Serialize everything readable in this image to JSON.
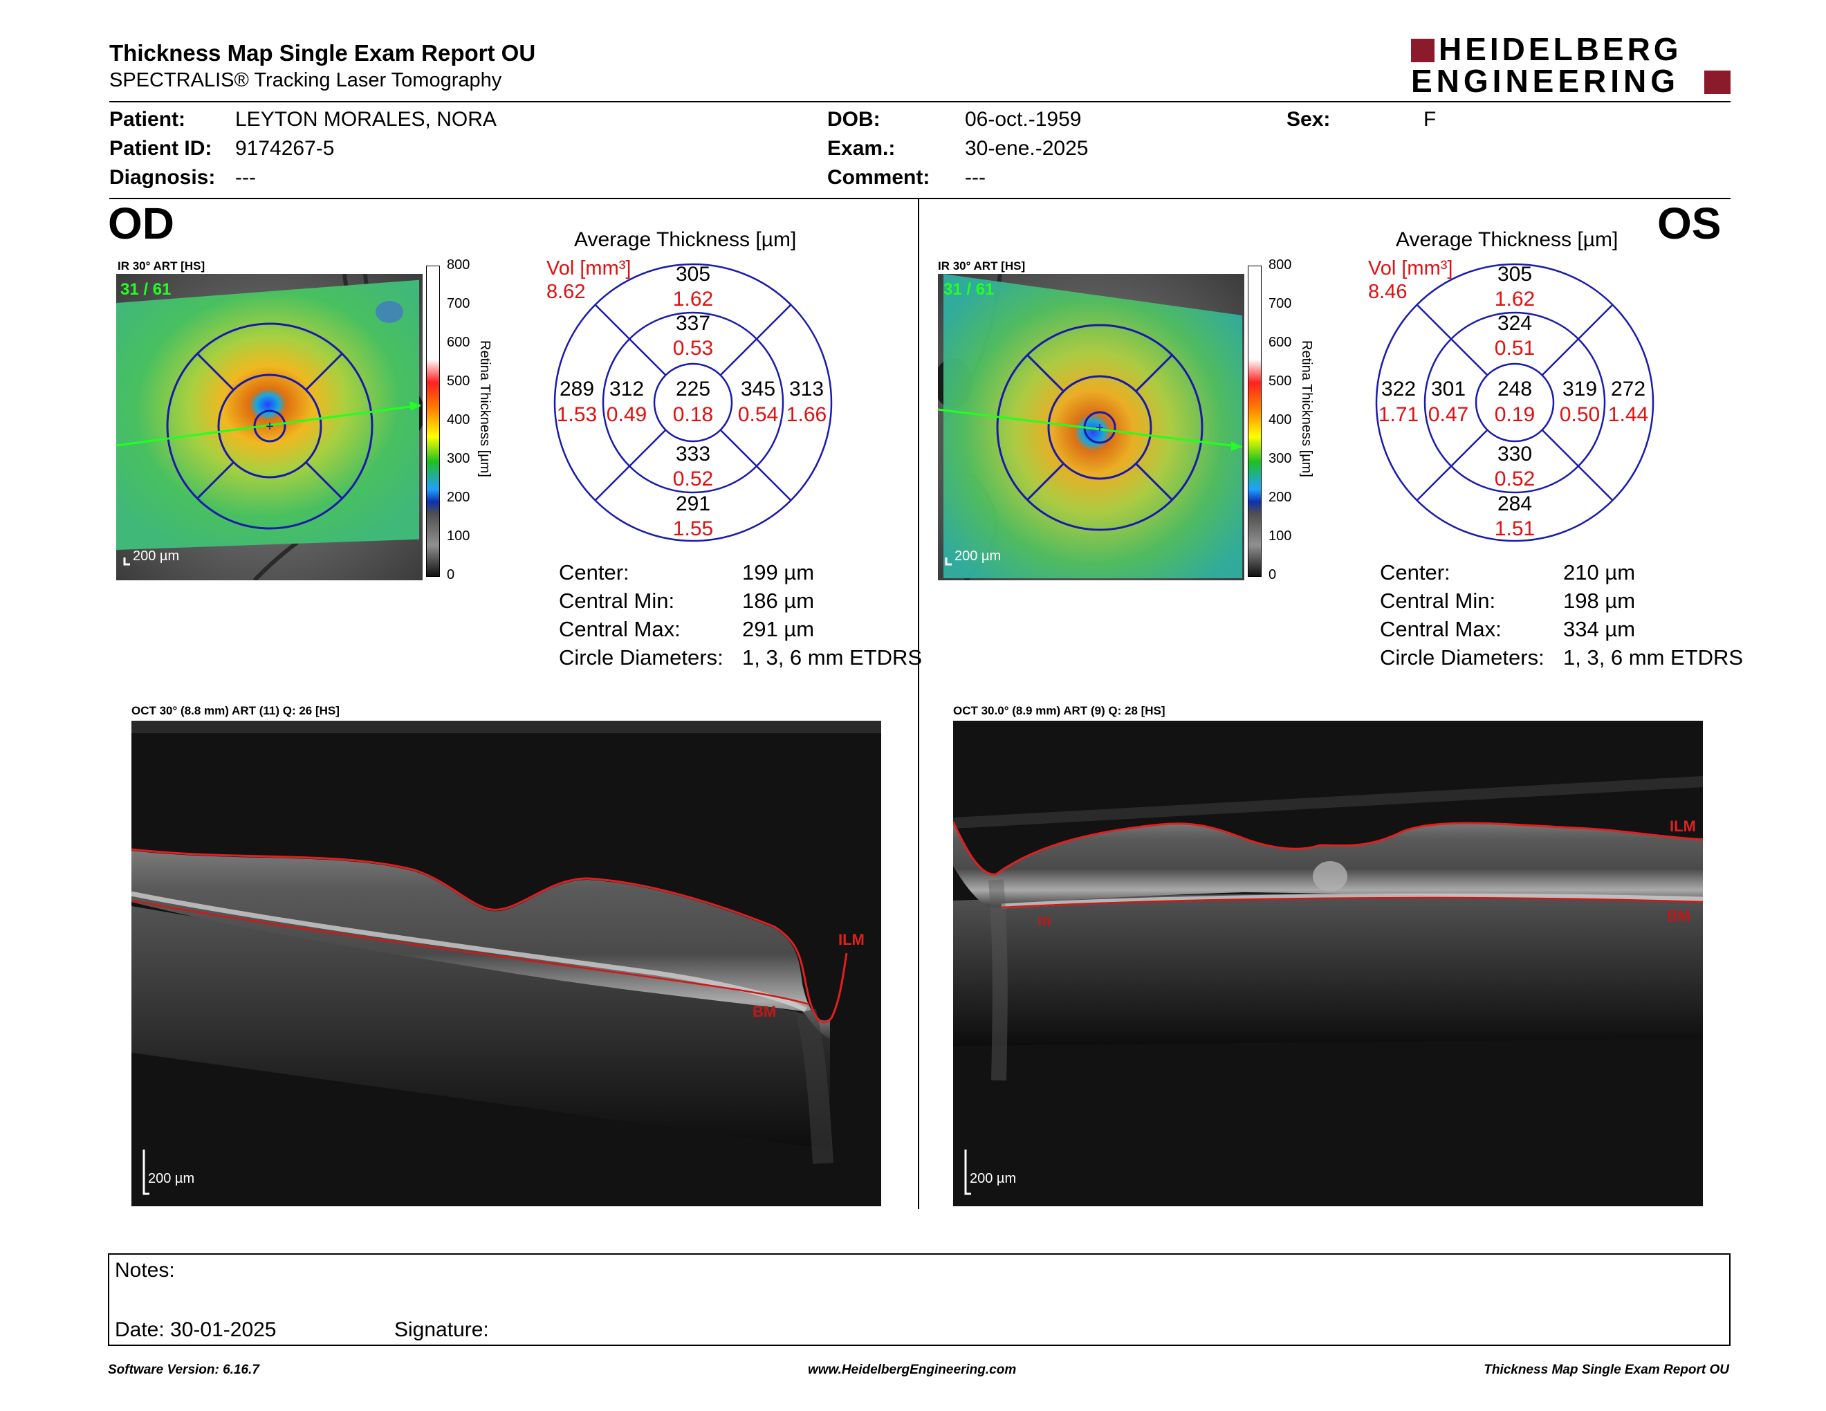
{
  "header": {
    "title": "Thickness Map Single Exam Report OU",
    "subtitle": "SPECTRALIS® Tracking Laser Tomography",
    "logo_line1": "HEIDELBERG",
    "logo_line2": "ENGINEERING",
    "brand_color": "#8b1a2b"
  },
  "patient": {
    "patient_label": "Patient:",
    "patient_value": "LEYTON MORALES, NORA",
    "id_label": "Patient ID:",
    "id_value": "9174267-5",
    "diagnosis_label": "Diagnosis:",
    "diagnosis_value": "---",
    "dob_label": "DOB:",
    "dob_value": "06-oct.-1959",
    "exam_label": "Exam.:",
    "exam_value": "30-ene.-2025",
    "comment_label": "Comment:",
    "comment_value": "---",
    "sex_label": "Sex:",
    "sex_value": "F"
  },
  "colorbar": {
    "ticks": [
      "800",
      "700",
      "600",
      "500",
      "400",
      "300",
      "200",
      "100",
      "0"
    ],
    "title": "Retina  Thickness [µm]"
  },
  "od": {
    "eye": "OD",
    "ir_title": "IR 30° ART [HS]",
    "frame": "31 / 61",
    "scale": "200 µm",
    "avg_title": "Average Thickness [µm]",
    "vol_label": "Vol [mm³]",
    "vol_value": "8.62",
    "etdrs": {
      "center_t": "225",
      "center_v": "0.18",
      "inner_sup_t": "337",
      "inner_sup_v": "0.53",
      "inner_inf_t": "333",
      "inner_inf_v": "0.52",
      "inner_left_t": "312",
      "inner_left_v": "0.49",
      "inner_right_t": "345",
      "inner_right_v": "0.54",
      "outer_sup_t": "305",
      "outer_sup_v": "1.62",
      "outer_inf_t": "291",
      "outer_inf_v": "1.55",
      "outer_left_t": "289",
      "outer_left_v": "1.53",
      "outer_right_t": "313",
      "outer_right_v": "1.66"
    },
    "stats": {
      "center_label": "Center:",
      "center_value": "199 µm",
      "min_label": "Central Min:",
      "min_value": "186 µm",
      "max_label": "Central Max:",
      "max_value": "291 µm",
      "diam_label": "Circle Diameters:",
      "diam_value": "1, 3, 6 mm ETDRS"
    },
    "oct_title": "OCT 30° (8.8 mm) ART (11) Q: 26 [HS]",
    "oct_scale": "200 µm",
    "ilm_label": "ILM",
    "bm_label": "BM"
  },
  "os": {
    "eye": "OS",
    "ir_title": "IR 30° ART [HS]",
    "frame": "31 / 61",
    "scale": "200 µm",
    "avg_title": "Average Thickness [µm]",
    "vol_label": "Vol [mm³]",
    "vol_value": "8.46",
    "etdrs": {
      "center_t": "248",
      "center_v": "0.19",
      "inner_sup_t": "324",
      "inner_sup_v": "0.51",
      "inner_inf_t": "330",
      "inner_inf_v": "0.52",
      "inner_left_t": "301",
      "inner_left_v": "0.47",
      "inner_right_t": "319",
      "inner_right_v": "0.50",
      "outer_sup_t": "305",
      "outer_sup_v": "1.62",
      "outer_inf_t": "284",
      "outer_inf_v": "1.51",
      "outer_left_t": "322",
      "outer_left_v": "1.71",
      "outer_right_t": "272",
      "outer_right_v": "1.44"
    },
    "stats": {
      "center_label": "Center:",
      "center_value": "210 µm",
      "min_label": "Central Min:",
      "min_value": "198 µm",
      "max_label": "Central Max:",
      "max_value": "334 µm",
      "diam_label": "Circle Diameters:",
      "diam_value": "1, 3, 6 mm ETDRS"
    },
    "oct_title": "OCT 30.0° (8.9 mm) ART (9) Q: 28 [HS]",
    "oct_scale": "200 µm",
    "ilm_label": "ILM",
    "bm_label": "BM",
    "bm_label_left": "m"
  },
  "notes": {
    "notes_label": "Notes:",
    "date_label": "Date: 30-01-2025",
    "signature_label": "Signature:"
  },
  "footer": {
    "version": "Software Version: 6.16.7",
    "url": "www.HeidelbergEngineering.com",
    "report": "Thickness Map Single Exam Report OU"
  }
}
